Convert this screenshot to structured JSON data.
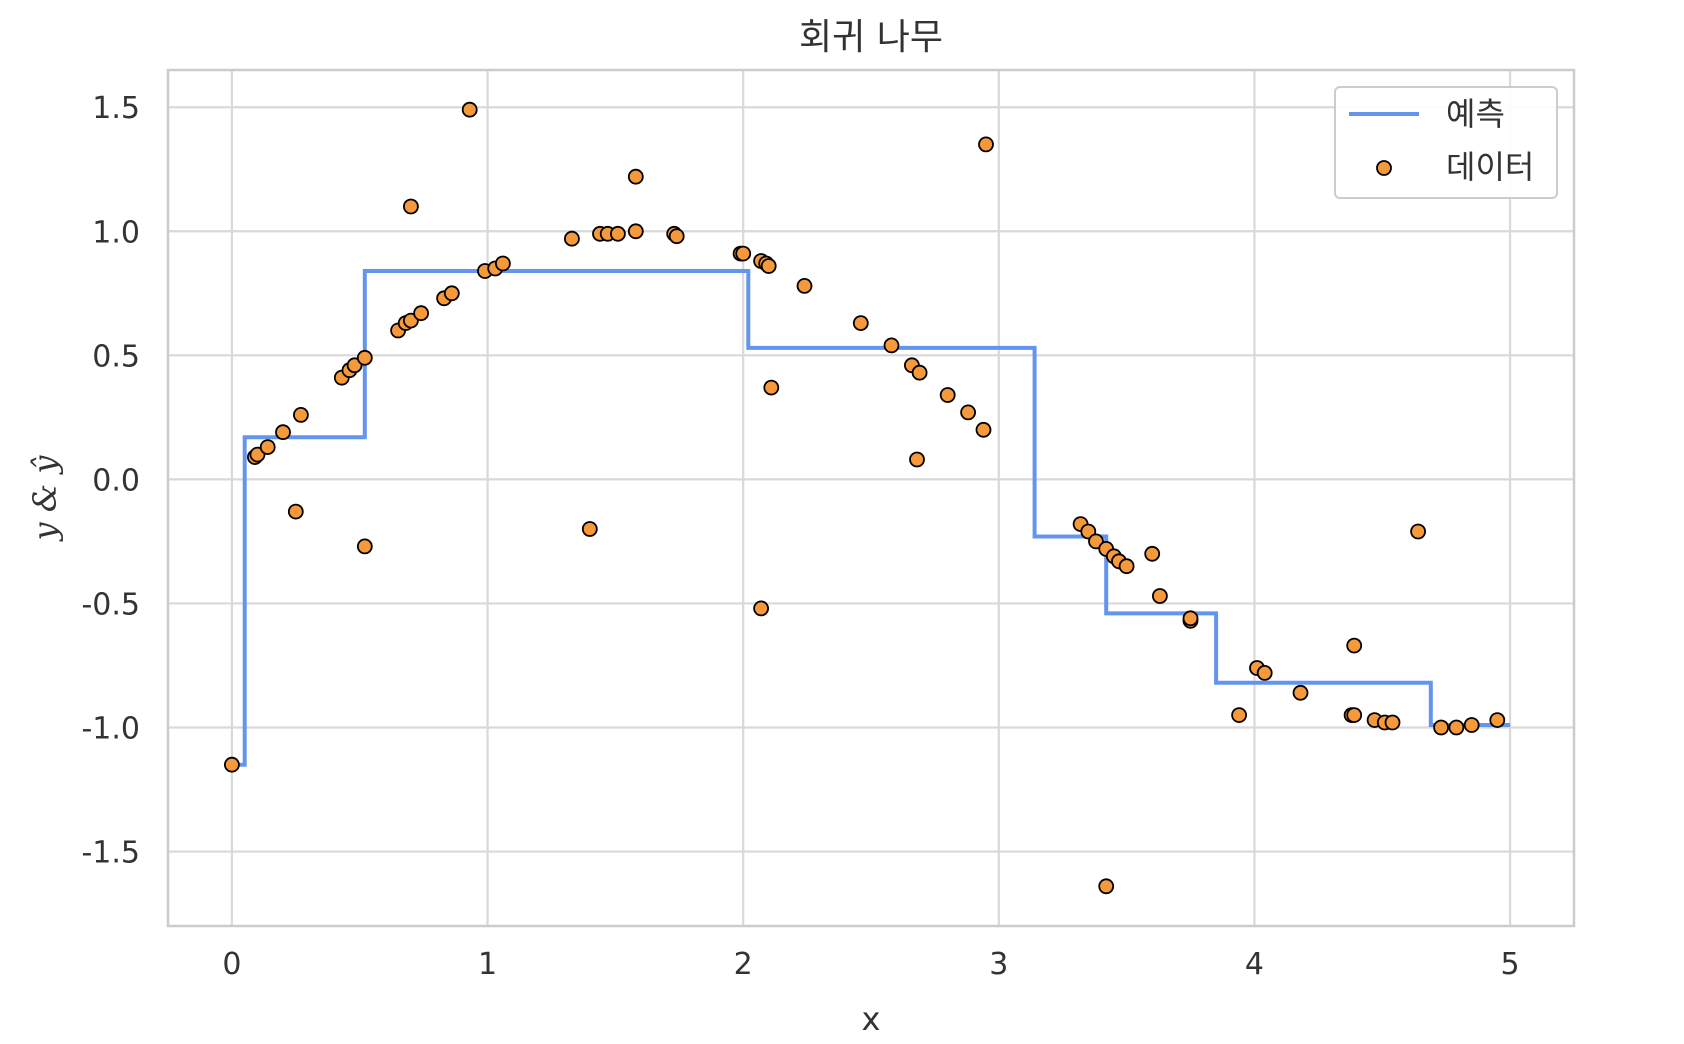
{
  "chart_data": {
    "type": "scatter",
    "title": "회귀 나무",
    "xlabel": "x",
    "ylabel": "y & ŷ",
    "xlim": [
      -0.25,
      5.25
    ],
    "ylim": [
      -1.8,
      1.65
    ],
    "xticks": [
      0,
      1,
      2,
      3,
      4,
      5
    ],
    "xtick_labels": [
      "0",
      "1",
      "2",
      "3",
      "4",
      "5"
    ],
    "yticks": [
      1.5,
      1.0,
      0.5,
      0.0,
      -0.5,
      -1.0,
      -1.5
    ],
    "ytick_labels": [
      "1.5",
      "1.0",
      "0.5",
      "0.0",
      "-0.5",
      "-1.0",
      "-1.5"
    ],
    "grid": true,
    "legend_position": "top-right",
    "series": [
      {
        "name": "예측",
        "kind": "line",
        "color": "#6495ED",
        "x": [
          0.0,
          0.05,
          0.05,
          0.52,
          0.52,
          2.02,
          2.02,
          3.14,
          3.14,
          3.42,
          3.42,
          3.85,
          3.85,
          4.69,
          4.69,
          5.0
        ],
        "y": [
          -1.15,
          -1.15,
          0.17,
          0.17,
          0.84,
          0.84,
          0.53,
          0.53,
          -0.23,
          -0.23,
          -0.54,
          -0.54,
          -0.82,
          -0.82,
          -0.99,
          -0.99
        ]
      },
      {
        "name": "데이터",
        "kind": "scatter",
        "color": "#F5993A",
        "edge_color": "#000000",
        "points": [
          [
            0.0,
            -1.15
          ],
          [
            0.09,
            0.09
          ],
          [
            0.1,
            0.1
          ],
          [
            0.14,
            0.13
          ],
          [
            0.2,
            0.19
          ],
          [
            0.25,
            -0.13
          ],
          [
            0.27,
            0.26
          ],
          [
            0.43,
            0.41
          ],
          [
            0.46,
            0.44
          ],
          [
            0.48,
            0.46
          ],
          [
            0.52,
            0.49
          ],
          [
            0.52,
            -0.27
          ],
          [
            0.65,
            0.6
          ],
          [
            0.68,
            0.63
          ],
          [
            0.7,
            0.64
          ],
          [
            0.7,
            1.1
          ],
          [
            0.74,
            0.67
          ],
          [
            0.83,
            0.73
          ],
          [
            0.86,
            0.75
          ],
          [
            0.93,
            1.49
          ],
          [
            0.99,
            0.84
          ],
          [
            1.03,
            0.85
          ],
          [
            1.06,
            0.87
          ],
          [
            1.33,
            0.97
          ],
          [
            1.4,
            -0.2
          ],
          [
            1.44,
            0.99
          ],
          [
            1.47,
            0.99
          ],
          [
            1.51,
            0.99
          ],
          [
            1.58,
            1.0
          ],
          [
            1.58,
            1.22
          ],
          [
            1.73,
            0.99
          ],
          [
            1.74,
            0.98
          ],
          [
            1.99,
            0.91
          ],
          [
            2.0,
            0.91
          ],
          [
            2.07,
            0.88
          ],
          [
            2.07,
            -0.52
          ],
          [
            2.09,
            0.87
          ],
          [
            2.1,
            0.86
          ],
          [
            2.11,
            0.37
          ],
          [
            2.24,
            0.78
          ],
          [
            2.46,
            0.63
          ],
          [
            2.58,
            0.54
          ],
          [
            2.66,
            0.46
          ],
          [
            2.69,
            0.43
          ],
          [
            2.68,
            0.08
          ],
          [
            2.8,
            0.34
          ],
          [
            2.88,
            0.27
          ],
          [
            2.94,
            0.2
          ],
          [
            2.95,
            1.35
          ],
          [
            3.32,
            -0.18
          ],
          [
            3.35,
            -0.21
          ],
          [
            3.38,
            -0.25
          ],
          [
            3.42,
            -0.28
          ],
          [
            3.42,
            -1.64
          ],
          [
            3.45,
            -0.31
          ],
          [
            3.47,
            -0.33
          ],
          [
            3.5,
            -0.35
          ],
          [
            3.6,
            -0.3
          ],
          [
            3.63,
            -0.47
          ],
          [
            3.75,
            -0.57
          ],
          [
            3.75,
            -0.56
          ],
          [
            3.94,
            -0.95
          ],
          [
            4.01,
            -0.76
          ],
          [
            4.04,
            -0.78
          ],
          [
            4.18,
            -0.86
          ],
          [
            4.38,
            -0.95
          ],
          [
            4.39,
            -0.95
          ],
          [
            4.39,
            -0.67
          ],
          [
            4.47,
            -0.97
          ],
          [
            4.51,
            -0.98
          ],
          [
            4.54,
            -0.98
          ],
          [
            4.64,
            -0.21
          ],
          [
            4.73,
            -1.0
          ],
          [
            4.79,
            -1.0
          ],
          [
            4.85,
            -0.99
          ],
          [
            4.95,
            -0.97
          ]
        ]
      }
    ]
  }
}
